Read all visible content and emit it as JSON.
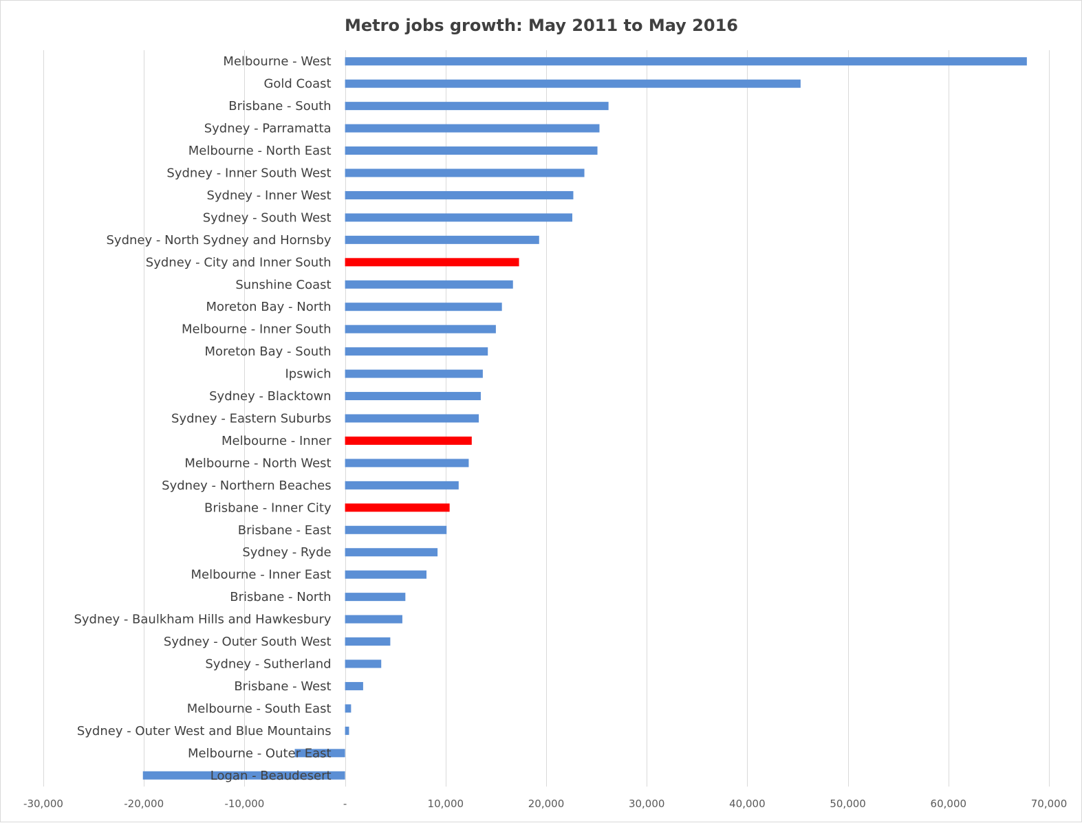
{
  "chart_data": {
    "type": "bar",
    "orientation": "horizontal",
    "title": "Metro jobs growth: May 2011 to May 2016",
    "xlabel": "",
    "ylabel": "",
    "xlim": [
      -30000,
      70000
    ],
    "x_ticks": [
      -30000,
      -20000,
      -10000,
      0,
      10000,
      20000,
      30000,
      40000,
      50000,
      60000,
      70000
    ],
    "x_tick_labels": [
      "-30,000",
      "-20,000",
      "-10,000",
      "-",
      "10,000",
      "20,000",
      "30,000",
      "40,000",
      "50,000",
      "60,000",
      "70,000"
    ],
    "grid": true,
    "legend": "none",
    "colors": {
      "default": "#5b8fd5",
      "highlight": "#ff0000",
      "grid": "#d9d9d9",
      "axis": "#d9d9d9"
    },
    "categories": [
      "Melbourne - West",
      "Gold Coast",
      "Brisbane - South",
      "Sydney - Parramatta",
      "Melbourne - North East",
      "Sydney - Inner South West",
      "Sydney - Inner West",
      "Sydney - South West",
      "Sydney - North Sydney and Hornsby",
      "Sydney - City and Inner South",
      "Sunshine Coast",
      "Moreton Bay - North",
      "Melbourne - Inner South",
      "Moreton Bay - South",
      "Ipswich",
      "Sydney - Blacktown",
      "Sydney - Eastern Suburbs",
      "Melbourne - Inner",
      "Melbourne - North West",
      "Sydney - Northern Beaches",
      "Brisbane - Inner City",
      "Brisbane - East",
      "Sydney - Ryde",
      "Melbourne - Inner East",
      "Brisbane - North",
      "Sydney - Baulkham Hills and Hawkesbury",
      "Sydney - Outer South West",
      "Sydney - Sutherland",
      "Brisbane - West",
      "Melbourne - South East",
      "Sydney - Outer West and Blue Mountains",
      "Melbourne - Outer East",
      "Logan - Beaudesert"
    ],
    "values": [
      67800,
      45300,
      26200,
      25300,
      25100,
      23800,
      22700,
      22600,
      19300,
      17300,
      16700,
      15600,
      15000,
      14200,
      13700,
      13500,
      13300,
      12600,
      12300,
      11300,
      10400,
      10100,
      9200,
      8100,
      6000,
      5700,
      4500,
      3600,
      1800,
      600,
      400,
      -5000,
      -20100
    ],
    "highlighted": [
      "Sydney - City and Inner South",
      "Melbourne - Inner",
      "Brisbane - Inner City"
    ]
  }
}
